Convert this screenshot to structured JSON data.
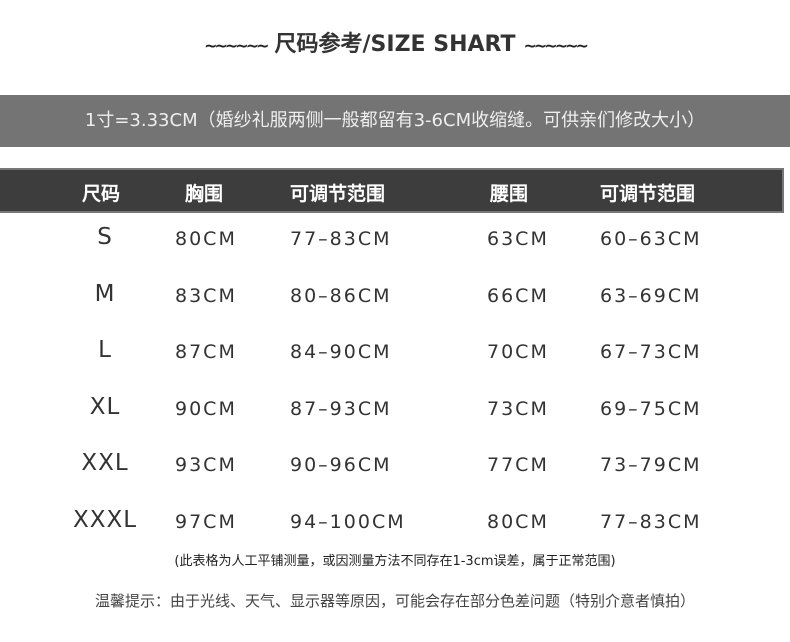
{
  "title": "尺码参考/SIZE SHART",
  "title_decoration": "~~~~~~",
  "conversion_note": "1寸=3.33CM（婚纱礼服两侧一般都留有3-6CM收缩缝。可供亲们修改大小）",
  "table": {
    "headers": [
      "尺码",
      "胸围",
      "可调节范围",
      "腰围",
      "可调节范围"
    ],
    "rows": [
      [
        "S",
        "80CM",
        "77–83CM",
        "63CM",
        "60–63CM"
      ],
      [
        "M",
        "83CM",
        "80–86CM",
        "66CM",
        "63–69CM"
      ],
      [
        "L",
        "87CM",
        "84–90CM",
        "70CM",
        "67–73CM"
      ],
      [
        "XL",
        "90CM",
        "87–93CM",
        "73CM",
        "69–75CM"
      ],
      [
        "XXL",
        "93CM",
        "90–96CM",
        "77CM",
        "73–79CM"
      ],
      [
        "XXXL",
        "97CM",
        "94–100CM",
        "80CM",
        "77–83CM"
      ]
    ]
  },
  "measurement_note": "(此表格为人工平铺测量，或因测量方法不同存在1-3cm误差，属于正常范围)",
  "color_tip": "温馨提示：由于光线、天气、显示器等原因，可能会存在部分色差问题（特别介意者慎拍）",
  "colors": {
    "band": "#747474",
    "header": "#3d3d3d"
  }
}
